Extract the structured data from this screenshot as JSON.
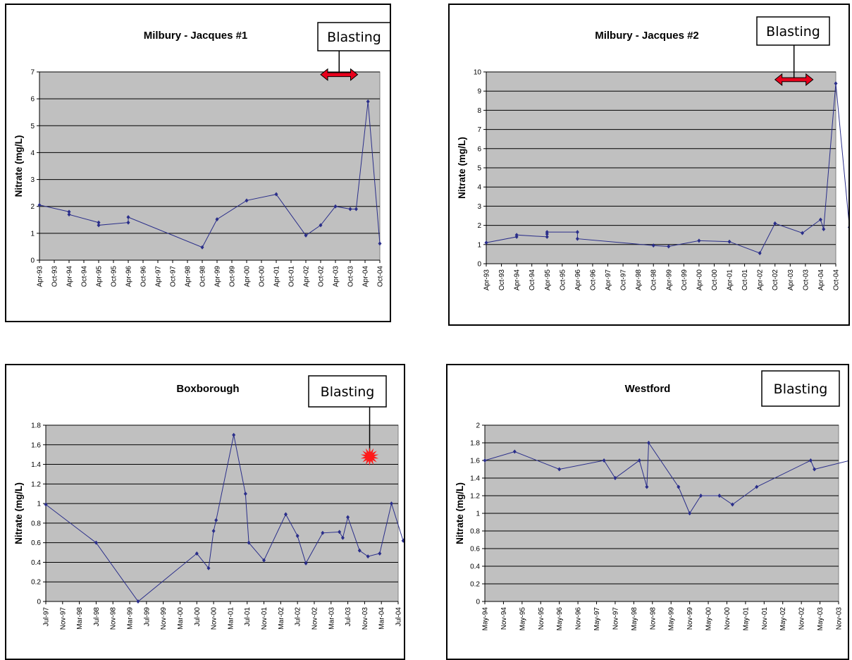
{
  "chart_data": [
    {
      "type": "line",
      "title": "Milbury - Jacques #1",
      "ylabel": "Nitrate (mg/L)",
      "xlabel": "",
      "ylim": [
        0,
        7
      ],
      "yticks": [
        0,
        1,
        2,
        3,
        4,
        5,
        6,
        7
      ],
      "grid": true,
      "categories": [
        "Apr-93",
        "Oct-93",
        "Apr-94",
        "Oct-94",
        "Apr-95",
        "Oct-95",
        "Apr-96",
        "Oct-96",
        "Apr-97",
        "Oct-97",
        "Apr-98",
        "Oct-98",
        "Apr-99",
        "Oct-99",
        "Apr-00",
        "Oct-00",
        "Apr-01",
        "Oct-01",
        "Apr-02",
        "Oct-02",
        "Apr-03",
        "Oct-03",
        "Apr-04",
        "Oct-04"
      ],
      "series": [
        {
          "color": "#2a2e8a",
          "points": [
            [
              0,
              2.05
            ],
            [
              2,
              1.8
            ],
            [
              2,
              1.7
            ],
            [
              4,
              1.4
            ],
            [
              4,
              1.3
            ],
            [
              6,
              1.4
            ],
            [
              6,
              1.6
            ],
            [
              11,
              0.48
            ],
            [
              12,
              1.52
            ],
            [
              14,
              2.22
            ],
            [
              16,
              2.45
            ],
            [
              18,
              0.92
            ],
            [
              19,
              1.3
            ],
            [
              20,
              2.0
            ],
            [
              21,
              1.9
            ],
            [
              21.4,
              1.9
            ],
            [
              22.2,
              5.9
            ],
            [
              23,
              0.62
            ]
          ]
        }
      ],
      "annotation": {
        "label": "Blasting",
        "marker": "double-arrow",
        "x_range": [
          19,
          21.5
        ],
        "y": 6.9
      }
    },
    {
      "type": "line",
      "title": "Milbury - Jacques #2",
      "ylabel": "Nitrate (mg/L)",
      "xlabel": "",
      "ylim": [
        0,
        10
      ],
      "yticks": [
        0,
        1,
        2,
        3,
        4,
        5,
        6,
        7,
        8,
        9,
        10
      ],
      "grid": true,
      "categories": [
        "Apr-93",
        "Oct-93",
        "Apr-94",
        "Oct-94",
        "Apr-95",
        "Oct-95",
        "Apr-96",
        "Oct-96",
        "Apr-97",
        "Oct-97",
        "Apr-98",
        "Oct-98",
        "Apr-99",
        "Oct-99",
        "Apr-00",
        "Oct-00",
        "Apr-01",
        "Oct-01",
        "Apr-02",
        "Oct-02",
        "Apr-03",
        "Oct-03",
        "Apr-04",
        "Oct-04"
      ],
      "series": [
        {
          "color": "#2a2e8a",
          "points": [
            [
              0,
              1.1
            ],
            [
              2,
              1.4
            ],
            [
              2,
              1.5
            ],
            [
              4,
              1.4
            ],
            [
              4,
              1.55
            ],
            [
              4,
              1.65
            ],
            [
              6,
              1.65
            ],
            [
              6,
              1.3
            ],
            [
              11,
              0.95
            ],
            [
              12,
              0.9
            ],
            [
              14,
              1.2
            ],
            [
              16,
              1.15
            ],
            [
              18,
              0.55
            ],
            [
              19,
              2.1
            ],
            [
              20.8,
              1.6
            ],
            [
              22,
              2.3
            ],
            [
              22.2,
              1.8
            ],
            [
              23,
              9.4
            ],
            [
              23.9,
              1.9
            ]
          ]
        }
      ],
      "annotation": {
        "label": "Blasting",
        "marker": "double-arrow",
        "x_range": [
          19,
          21.5
        ],
        "y": 9.6
      }
    },
    {
      "type": "line",
      "title": "Boxborough",
      "ylabel": "Nitrate (mg/L)",
      "xlabel": "",
      "ylim": [
        0,
        1.8
      ],
      "yticks": [
        0,
        0.2,
        0.4,
        0.6,
        0.8,
        1,
        1.2,
        1.4,
        1.6,
        1.8
      ],
      "grid": true,
      "categories": [
        "Jul-97",
        "Nov-97",
        "Mar-98",
        "Jul-98",
        "Nov-98",
        "Mar-99",
        "Jul-99",
        "Nov-99",
        "Mar-00",
        "Jul-00",
        "Nov-00",
        "Mar-01",
        "Jul-01",
        "Nov-01",
        "Mar-02",
        "Jul-02",
        "Nov-02",
        "Mar-03",
        "Jul-03",
        "Nov-03",
        "Mar-04",
        "Jul-04"
      ],
      "series": [
        {
          "color": "#2a2e8a",
          "points": [
            [
              0,
              0.99
            ],
            [
              3,
              0.6
            ],
            [
              5.5,
              0.0
            ],
            [
              9,
              0.49
            ],
            [
              9.7,
              0.34
            ],
            [
              10,
              0.72
            ],
            [
              10.15,
              0.83
            ],
            [
              11.2,
              1.7
            ],
            [
              11.9,
              1.1
            ],
            [
              12.1,
              0.6
            ],
            [
              13,
              0.42
            ],
            [
              14.3,
              0.89
            ],
            [
              15,
              0.67
            ],
            [
              15.5,
              0.39
            ],
            [
              16.5,
              0.7
            ],
            [
              17.5,
              0.71
            ],
            [
              17.7,
              0.65
            ],
            [
              18,
              0.86
            ],
            [
              18.7,
              0.52
            ],
            [
              19.2,
              0.46
            ],
            [
              19.9,
              0.49
            ],
            [
              20.6,
              1.0
            ],
            [
              21.3,
              0.62
            ],
            [
              22.1,
              1.0
            ]
          ]
        }
      ],
      "annotation": {
        "label": "Blasting",
        "marker": "starburst",
        "x": 19.3,
        "y": 1.48
      }
    },
    {
      "type": "line",
      "title": "Westford",
      "ylabel": "Nitrate (mg/L)",
      "xlabel": "",
      "ylim": [
        0,
        2
      ],
      "yticks": [
        0,
        0.2,
        0.4,
        0.6,
        0.8,
        1,
        1.2,
        1.4,
        1.6,
        1.8,
        2
      ],
      "grid": true,
      "categories": [
        "May-94",
        "Nov-94",
        "May-95",
        "Nov-95",
        "May-96",
        "Nov-96",
        "May-97",
        "Nov-97",
        "May-98",
        "Nov-98",
        "May-99",
        "Nov-99",
        "May-00",
        "Nov-00",
        "May-01",
        "Nov-01",
        "May-02",
        "Nov-02",
        "May-03",
        "Nov-03"
      ],
      "series": [
        {
          "color": "#2a2e8a",
          "points": [
            [
              0,
              1.6
            ],
            [
              1.6,
              1.7
            ],
            [
              4,
              1.5
            ],
            [
              6.4,
              1.6
            ],
            [
              7,
              1.4
            ],
            [
              8.3,
              1.6
            ],
            [
              8.7,
              1.3
            ],
            [
              8.8,
              1.8
            ],
            [
              10.4,
              1.3
            ],
            [
              11,
              1.0
            ],
            [
              11.6,
              1.2
            ],
            [
              12.6,
              1.2
            ],
            [
              13.3,
              1.1
            ],
            [
              14.6,
              1.3
            ],
            [
              17.5,
              1.6
            ],
            [
              17.7,
              1.5
            ],
            [
              19.6,
              1.6
            ],
            [
              22,
              1.8
            ]
          ]
        }
      ],
      "annotation": {
        "label": "Blasting",
        "marker": "double-arrow",
        "x_range": [
          20.4,
          22
        ],
        "y": 1.9
      }
    }
  ]
}
